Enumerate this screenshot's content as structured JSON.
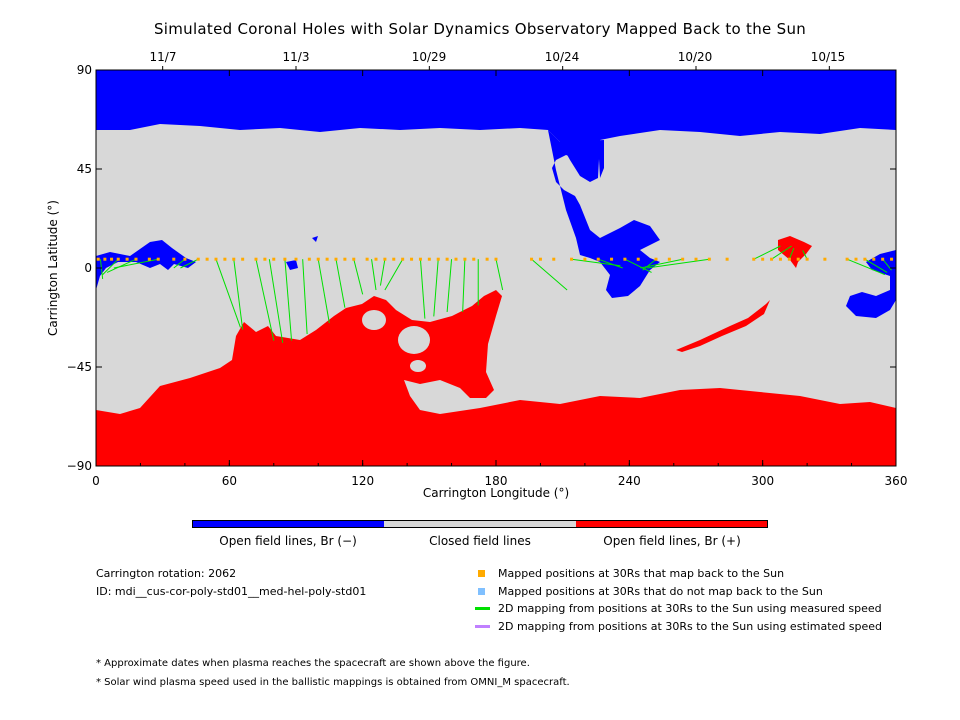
{
  "title": "Simulated Coronal Holes with Solar Dynamics Observatory Mapped Back to the Sun",
  "top_dates": [
    "11/7",
    "11/3",
    "10/29",
    "10/24",
    "10/20",
    "10/15"
  ],
  "colors": {
    "open_negative": "#0000ff",
    "closed": "#d8d8d8",
    "open_positive": "#ff0000",
    "mapped_point": "#ffaa00",
    "unmapped_point": "#80c0ff",
    "measured_line": "#00e000",
    "estimated_line": "#c080ff"
  },
  "colorbar": {
    "labels": [
      "Open field lines, Br (−)",
      "Closed field lines",
      "Open field lines, Br (+)"
    ]
  },
  "info": {
    "rotation": "Carrington rotation: 2062",
    "id": "ID: mdi__cus-cor-poly-std01__med-hel-poly-std01"
  },
  "legend": [
    {
      "marker": "mapped-point",
      "text": "Mapped positions at 30Rs that map back to the Sun"
    },
    {
      "marker": "unmapped-point",
      "text": "Mapped positions at 30Rs that do not map back to the Sun"
    },
    {
      "marker": "measured-line",
      "text": "2D mapping from positions at 30Rs to the Sun using measured speed"
    },
    {
      "marker": "estimated-line",
      "text": "2D mapping from positions at 30Rs to the Sun using estimated speed"
    }
  ],
  "footnotes": [
    "* Approximate dates when plasma reaches the spacecraft are shown above the figure.",
    "* Solar wind plasma speed used in the ballistic mappings is obtained from OMNI_M spacecraft."
  ],
  "chart_data": {
    "type": "heatmap",
    "title": "Simulated Coronal Holes with Solar Dynamics Observatory Mapped Back to the Sun",
    "xlabel": "Carrington Longitude (°)",
    "ylabel": "Carrington Latitude (°)",
    "xlim": [
      0,
      360
    ],
    "ylim": [
      -90,
      90
    ],
    "xticks": [
      0,
      60,
      120,
      180,
      240,
      300,
      360
    ],
    "yticks": [
      90,
      45,
      0,
      -45,
      -90
    ],
    "ytick_labels": [
      "90",
      "45",
      "0",
      "−45",
      "−90"
    ],
    "top_axis_dates": [
      {
        "lon": 30,
        "date": "11/7"
      },
      {
        "lon": 90,
        "date": "11/3"
      },
      {
        "lon": 150,
        "date": "10/29"
      },
      {
        "lon": 210,
        "date": "10/24"
      },
      {
        "lon": 270,
        "date": "10/20"
      },
      {
        "lon": 330,
        "date": "10/15"
      }
    ],
    "regions": [
      {
        "name": "Open field lines, Br (−)",
        "polarity": "negative",
        "location": "north polar cap above ~65° with lobe down to ~0° near 210–240°, small holes near 20° and 340–360°"
      },
      {
        "name": "Closed field lines",
        "polarity": "closed",
        "location": "mid latitudes"
      },
      {
        "name": "Open field lines, Br (+)",
        "polarity": "positive",
        "location": "south polar cap below ~−60° with lobe up to ~−10° near 60–180°, small hole near 310°"
      }
    ],
    "mapped_positions_latitude": 4,
    "mappings": [
      {
        "from_lon": 2,
        "to_lon": 3,
        "to_lat": -5
      },
      {
        "from_lon": 10,
        "to_lon": 3,
        "to_lat": -3
      },
      {
        "from_lon": 18,
        "to_lon": 5,
        "to_lat": -2
      },
      {
        "from_lon": 28,
        "to_lon": 8,
        "to_lat": 0
      },
      {
        "from_lon": 40,
        "to_lon": 35,
        "to_lat": 0
      },
      {
        "from_lon": 46,
        "to_lon": 38,
        "to_lat": 0
      },
      {
        "from_lon": 54,
        "to_lon": 65,
        "to_lat": -27
      },
      {
        "from_lon": 62,
        "to_lon": 66,
        "to_lat": -28
      },
      {
        "from_lon": 72,
        "to_lon": 80,
        "to_lat": -33
      },
      {
        "from_lon": 78,
        "to_lon": 84,
        "to_lat": -34
      },
      {
        "from_lon": 85,
        "to_lon": 88,
        "to_lat": -33
      },
      {
        "from_lon": 93,
        "to_lon": 95,
        "to_lat": -30
      },
      {
        "from_lon": 100,
        "to_lon": 105,
        "to_lat": -25
      },
      {
        "from_lon": 108,
        "to_lon": 112,
        "to_lat": -18
      },
      {
        "from_lon": 116,
        "to_lon": 120,
        "to_lat": -12
      },
      {
        "from_lon": 124,
        "to_lon": 126,
        "to_lat": -10
      },
      {
        "from_lon": 130,
        "to_lon": 128,
        "to_lat": -8
      },
      {
        "from_lon": 138,
        "to_lon": 130,
        "to_lat": -10
      },
      {
        "from_lon": 146,
        "to_lon": 148,
        "to_lat": -23
      },
      {
        "from_lon": 154,
        "to_lon": 152,
        "to_lat": -22
      },
      {
        "from_lon": 160,
        "to_lon": 158,
        "to_lat": -20
      },
      {
        "from_lon": 166,
        "to_lon": 165,
        "to_lat": -20
      },
      {
        "from_lon": 172,
        "to_lon": 172,
        "to_lat": -17
      },
      {
        "from_lon": 180,
        "to_lon": 183,
        "to_lat": -10
      },
      {
        "from_lon": 196,
        "to_lon": 212,
        "to_lat": -10
      },
      {
        "from_lon": 214,
        "to_lon": 236,
        "to_lat": 1
      },
      {
        "from_lon": 226,
        "to_lon": 237,
        "to_lat": 0
      },
      {
        "from_lon": 238,
        "to_lon": 250,
        "to_lat": -2
      },
      {
        "from_lon": 252,
        "to_lon": 246,
        "to_lat": -1
      },
      {
        "from_lon": 264,
        "to_lon": 245,
        "to_lat": 0
      },
      {
        "from_lon": 276,
        "to_lon": 248,
        "to_lat": 0
      },
      {
        "from_lon": 296,
        "to_lon": 308,
        "to_lat": 10
      },
      {
        "from_lon": 304,
        "to_lon": 313,
        "to_lat": 10
      },
      {
        "from_lon": 312,
        "to_lon": 314,
        "to_lat": 9
      },
      {
        "from_lon": 320,
        "to_lon": 318,
        "to_lat": 8
      },
      {
        "from_lon": 338,
        "to_lon": 355,
        "to_lat": -3
      },
      {
        "from_lon": 346,
        "to_lon": 356,
        "to_lat": -2
      },
      {
        "from_lon": 354,
        "to_lon": 358,
        "to_lat": -1
      }
    ],
    "points_lon": [
      1,
      4,
      7,
      10,
      14,
      18,
      24,
      28,
      35,
      40,
      46,
      50,
      54,
      58,
      62,
      66,
      72,
      76,
      80,
      85,
      90,
      96,
      100,
      104,
      108,
      112,
      116,
      122,
      126,
      130,
      134,
      138,
      142,
      146,
      150,
      154,
      158,
      162,
      166,
      170,
      176,
      180,
      196,
      200,
      206,
      214,
      220,
      226,
      232,
      238,
      244,
      252,
      258,
      264,
      270,
      276,
      284,
      296,
      300,
      304,
      308,
      312,
      316,
      320,
      328,
      338,
      342,
      346,
      350,
      354,
      358
    ]
  }
}
